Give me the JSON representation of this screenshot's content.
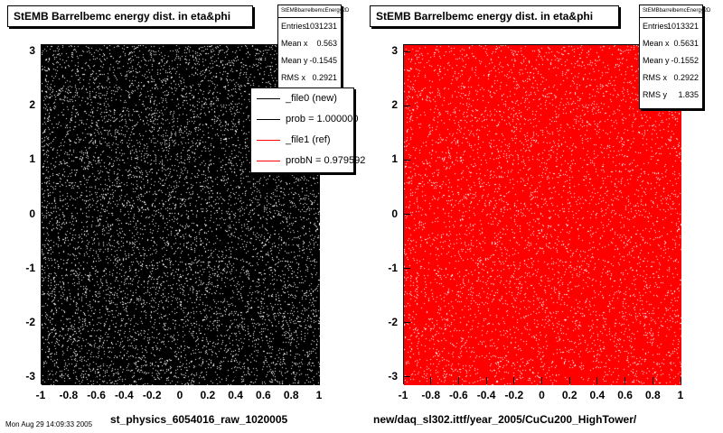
{
  "panels": [
    {
      "title": "StEMB Barrelbemc energy dist. in eta&phi",
      "stats": {
        "name": "StEMBbarrelbemcEnergy2D",
        "rows": [
          {
            "label": "Entries",
            "value": "1031231"
          },
          {
            "label": "Mean x",
            "value": "0.563"
          },
          {
            "label": "Mean y",
            "value": "-0.1545"
          },
          {
            "label": "RMS x",
            "value": "0.2921"
          }
        ]
      },
      "xlabel": "st_physics_6054016_raw_1020005"
    },
    {
      "title": "StEMB Barrelbemc energy dist. in eta&phi",
      "stats": {
        "name": "StEMBbarrelbemcEnergy2D",
        "rows": [
          {
            "label": "Entries",
            "value": "1013321"
          },
          {
            "label": "Mean x",
            "value": "0.5631"
          },
          {
            "label": "Mean y",
            "value": "-0.1552"
          },
          {
            "label": "RMS x",
            "value": "0.2922"
          },
          {
            "label": "RMS y",
            "value": "1.835"
          }
        ]
      },
      "xlabel": "new/daq_sl302.ittf/year_2005/CuCu200_HighTower/"
    }
  ],
  "legend": [
    {
      "text": "_file0 (new)",
      "color": "#000000"
    },
    {
      "text": "prob = 1.000000",
      "color": "#000000"
    },
    {
      "text": "_file1 (ref)",
      "color": "#ff0000"
    },
    {
      "text": "probN = 0.979592",
      "color": "#ff0000"
    }
  ],
  "footer": "Mon Aug 29 14:09:33 2005",
  "chart_data": [
    {
      "type": "scatter",
      "title": "StEMB Barrelbemc energy dist. in eta&phi",
      "xlabel": "st_physics_6054016_raw_1020005",
      "ylabel": "",
      "xlim": [
        -1,
        1
      ],
      "ylim": [
        -3.14,
        3.14
      ],
      "xticks": [
        "-1",
        "-0.8",
        "-0.6",
        "-0.4",
        "-0.2",
        "0",
        "0.2",
        "0.4",
        "0.6",
        "0.8",
        "1"
      ],
      "yticks": [
        "-3",
        "-2",
        "-1",
        "0",
        "1",
        "2",
        "3"
      ],
      "series": [
        {
          "name": "_file0 (new)",
          "color": "#000000",
          "fill": "#ffffff",
          "distribution": "uniform"
        }
      ]
    },
    {
      "type": "scatter",
      "title": "StEMB Barrelbemc energy dist. in eta&phi",
      "xlabel": "new/daq_sl302.ittf/year_2005/CuCu200_HighTower/",
      "ylabel": "",
      "xlim": [
        -1,
        1
      ],
      "ylim": [
        -3.14,
        3.14
      ],
      "xticks": [
        "-1",
        "-0.8",
        "-0.6",
        "-0.4",
        "-0.2",
        "0",
        "0.2",
        "0.4",
        "0.6",
        "0.8",
        "1"
      ],
      "yticks": [
        "-3",
        "-2",
        "-1",
        "0",
        "1",
        "2",
        "3"
      ],
      "series": [
        {
          "name": "_file1 (ref)",
          "color": "#ff0000",
          "fill": "#ffffff",
          "distribution": "uniform"
        }
      ]
    }
  ]
}
